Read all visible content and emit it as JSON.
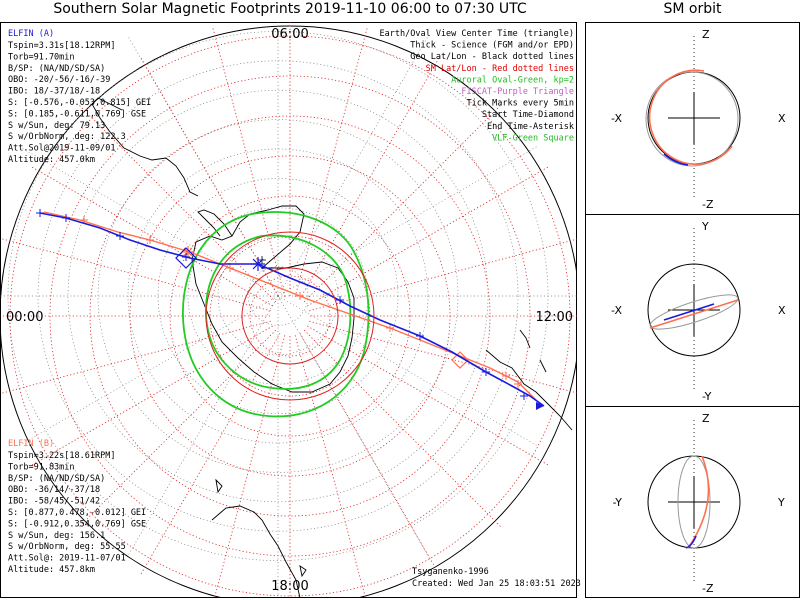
{
  "title": "Southern Solar Magnetic Footprints 2019-11-10 06:00 to 07:30 UTC",
  "orbit_title": "SM orbit",
  "hour_labels": {
    "top": "06:00",
    "left": "00:00",
    "right": "12:00",
    "bottom": "18:00"
  },
  "elfin_a": {
    "name": "ELFIN (A)",
    "color": "#1a1adf",
    "lines": [
      "Tspin=3.31s[18.12RPM]",
      "Torb=91.70min",
      "B/SP: (NA/ND/SD/SA)",
      "OBO: -20/-56/-16/-39",
      "IBO: 18/-37/18/-18",
      "S: [-0.576,-0.053,0.815] GEI",
      "S: [0.185,-0.611,0.769] GSE",
      "S w/Sun, deg: 79.13",
      "S w/OrbNorm, deg: 122.3",
      "Att.Sol@2019-11-09/01",
      "Altitude: 457.0km"
    ]
  },
  "elfin_b": {
    "name": "ELFIN (B)",
    "color": "#ff6f4f",
    "lines": [
      "Tspin=3.22s[18.61RPM]",
      "Torb=91.83min",
      "B/SP: (NA/ND/SD/SA)",
      "OBO: -36/14/-37/18",
      "IBO: -58/45/-51/42",
      "S: [0.877,0.478,-0.012] GEI",
      "S: [-0.912,0.354,0.769] GSE",
      "S w/Sun, deg: 156.1",
      "S w/OrbNorm, deg: 55.55",
      "Att.Sol@: 2019-11-07/01",
      "Altitude: 457.8km"
    ]
  },
  "legend": [
    {
      "text": "Earth/Oval View Center Time (triangle)",
      "color": "#000000"
    },
    {
      "text": "Thick - Science (FGM and/or EPD)",
      "color": "#000000"
    },
    {
      "text": "Geo Lat/Lon - Black dotted lines",
      "color": "#000000"
    },
    {
      "text": "SM Lat/Lon - Red dotted lines",
      "color": "#e00000"
    },
    {
      "text": "Auroral Oval-Green, kp=2",
      "color": "#22bb22"
    },
    {
      "text": "FISCAT-Purple Triangle",
      "color": "#c060c0"
    },
    {
      "text": "Tick Marks every 5min",
      "color": "#000000"
    },
    {
      "text": "Start Time-Diamond",
      "color": "#000000"
    },
    {
      "text": "End Time-Asterisk",
      "color": "#000000"
    },
    {
      "text": "VLF-Green Square",
      "color": "#22bb22"
    }
  ],
  "credit": "Tsyganenko-1996",
  "created": "Created: Wed Jan 25 18:03:51 2023",
  "panels": [
    {
      "top": "Z",
      "bottom": "-Z",
      "left": "-X",
      "right": "X"
    },
    {
      "top": "Y",
      "bottom": "-Y",
      "left": "-X",
      "right": "X"
    },
    {
      "top": "Z",
      "bottom": "-Z",
      "left": "-Y",
      "right": "Y"
    }
  ],
  "chart_data": {
    "type": "scatter",
    "title": "Southern Solar Magnetic Footprints 2019-11-10 06:00 to 07:30 UTC",
    "projection": "polar, southern hemisphere",
    "series": [
      {
        "name": "ELFIN (A)",
        "color": "#1a1adf"
      },
      {
        "name": "ELFIN (B)",
        "color": "#ff6f4f"
      }
    ]
  }
}
